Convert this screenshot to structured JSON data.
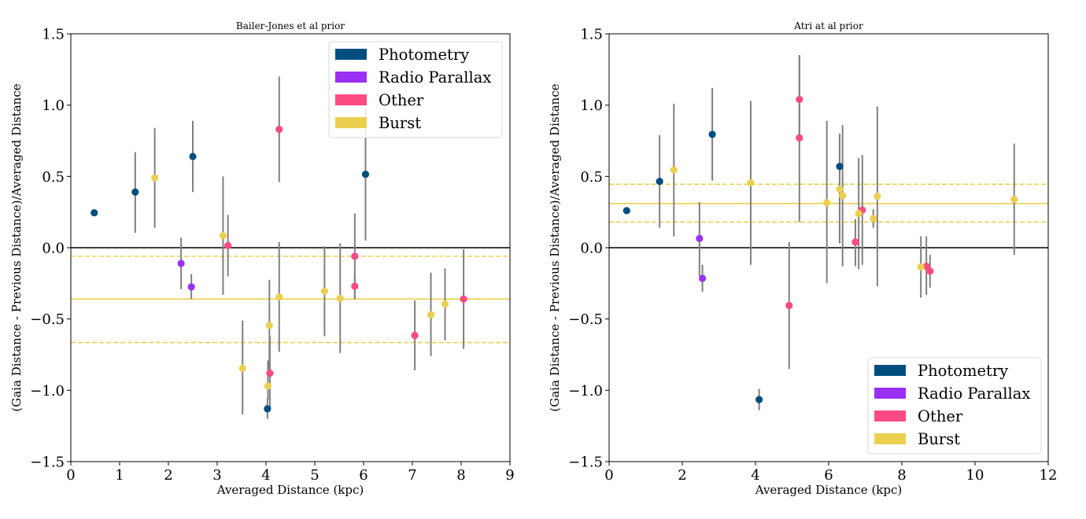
{
  "colors": {
    "photometry": "#004e7f",
    "radio": "#9b30f5",
    "other": "#fc4a83",
    "burst": "#ebd050",
    "errorbar": "#808080",
    "zero_line": "#000000"
  },
  "chart_data": [
    {
      "type": "scatter",
      "title": "Bailer-Jones et al prior",
      "xlabel": "Averaged Distance (kpc)",
      "ylabel": "(Gaia Distance - Previous Distance)/Averaged Distance",
      "xlim": [
        0,
        9
      ],
      "ylim": [
        -1.5,
        1.5
      ],
      "xticks": [
        "0",
        "1",
        "2",
        "3",
        "4",
        "5",
        "6",
        "7",
        "8",
        "9"
      ],
      "yticks": [
        "1.5",
        "1.0",
        "0.5",
        "0.0",
        "−0.5",
        "−1.0",
        "−1.5"
      ],
      "legend_position": "upper right",
      "legend": [
        {
          "label": "Photometry",
          "category": "photometry"
        },
        {
          "label": "Radio Parallax",
          "category": "radio"
        },
        {
          "label": "Other",
          "category": "other"
        },
        {
          "label": "Burst",
          "category": "burst"
        }
      ],
      "reference_lines": [
        {
          "y": 0.0,
          "category": "zero",
          "style": "solid"
        },
        {
          "y": -0.36,
          "category": "burst",
          "style": "solid"
        },
        {
          "y": -0.06,
          "category": "burst",
          "style": "dashed"
        },
        {
          "y": -0.665,
          "category": "burst",
          "style": "dashed"
        }
      ],
      "points": [
        {
          "x": 0.48,
          "y": 0.245,
          "lo": 0.245,
          "hi": 0.245,
          "category": "photometry"
        },
        {
          "x": 1.32,
          "y": 0.39,
          "lo": 0.105,
          "hi": 0.67,
          "category": "photometry"
        },
        {
          "x": 2.5,
          "y": 0.64,
          "lo": 0.39,
          "hi": 0.89,
          "category": "photometry"
        },
        {
          "x": 4.03,
          "y": -1.13,
          "lo": -1.2,
          "hi": -1.06,
          "category": "photometry"
        },
        {
          "x": 6.04,
          "y": 0.515,
          "lo": 0.05,
          "hi": 0.98,
          "category": "photometry"
        },
        {
          "x": 2.26,
          "y": -0.11,
          "lo": -0.29,
          "hi": 0.07,
          "category": "radio"
        },
        {
          "x": 2.47,
          "y": -0.275,
          "lo": -0.36,
          "hi": -0.185,
          "category": "radio"
        },
        {
          "x": 3.22,
          "y": 0.015,
          "lo": -0.2,
          "hi": 0.23,
          "category": "other"
        },
        {
          "x": 4.08,
          "y": -0.88,
          "lo": -1.14,
          "hi": -0.62,
          "category": "other"
        },
        {
          "x": 4.27,
          "y": 0.83,
          "lo": 0.46,
          "hi": 1.2,
          "category": "other"
        },
        {
          "x": 5.82,
          "y": -0.06,
          "lo": -0.36,
          "hi": 0.24,
          "category": "other"
        },
        {
          "x": 5.82,
          "y": -0.27,
          "lo": -0.36,
          "hi": -0.18,
          "category": "other"
        },
        {
          "x": 7.05,
          "y": -0.615,
          "lo": -0.86,
          "hi": -0.37,
          "category": "other"
        },
        {
          "x": 8.05,
          "y": -0.36,
          "lo": -0.71,
          "hi": -0.01,
          "category": "other"
        },
        {
          "x": 1.72,
          "y": 0.49,
          "lo": 0.14,
          "hi": 0.84,
          "category": "burst"
        },
        {
          "x": 3.12,
          "y": 0.085,
          "lo": -0.33,
          "hi": 0.5,
          "category": "burst"
        },
        {
          "x": 3.52,
          "y": -0.845,
          "lo": -1.17,
          "hi": -0.51,
          "category": "burst"
        },
        {
          "x": 4.04,
          "y": -0.97,
          "lo": -1.07,
          "hi": -0.79,
          "category": "burst"
        },
        {
          "x": 4.07,
          "y": -0.545,
          "lo": -0.86,
          "hi": -0.225,
          "category": "burst"
        },
        {
          "x": 4.27,
          "y": -0.345,
          "lo": -0.73,
          "hi": 0.04,
          "category": "burst"
        },
        {
          "x": 5.2,
          "y": -0.305,
          "lo": -0.62,
          "hi": 0.01,
          "category": "burst"
        },
        {
          "x": 5.52,
          "y": -0.355,
          "lo": -0.74,
          "hi": 0.03,
          "category": "burst"
        },
        {
          "x": 7.38,
          "y": -0.47,
          "lo": -0.76,
          "hi": -0.175,
          "category": "burst"
        },
        {
          "x": 7.67,
          "y": -0.395,
          "lo": -0.65,
          "hi": -0.145,
          "category": "burst"
        }
      ]
    },
    {
      "type": "scatter",
      "title": "Atri at al prior",
      "xlabel": "Averaged Distance (kpc)",
      "ylabel": "(Gaia Distance - Previous Distance)/Averaged Distance",
      "xlim": [
        0,
        12
      ],
      "ylim": [
        -1.5,
        1.5
      ],
      "xticks": [
        "0",
        "2",
        "4",
        "6",
        "8",
        "10",
        "12"
      ],
      "yticks": [
        "1.5",
        "1.0",
        "0.5",
        "0.0",
        "−0.5",
        "−1.0",
        "−1.5"
      ],
      "legend_position": "lower right",
      "legend": [
        {
          "label": "Photometry",
          "category": "photometry"
        },
        {
          "label": "Radio Parallax",
          "category": "radio"
        },
        {
          "label": "Other",
          "category": "other"
        },
        {
          "label": "Burst",
          "category": "burst"
        }
      ],
      "reference_lines": [
        {
          "y": 0.0,
          "category": "zero",
          "style": "solid"
        },
        {
          "y": 0.31,
          "category": "burst",
          "style": "solid"
        },
        {
          "y": 0.445,
          "category": "burst",
          "style": "dashed"
        },
        {
          "y": 0.18,
          "category": "burst",
          "style": "dashed"
        }
      ],
      "points": [
        {
          "x": 0.48,
          "y": 0.26,
          "lo": 0.26,
          "hi": 0.26,
          "category": "photometry"
        },
        {
          "x": 1.38,
          "y": 0.465,
          "lo": 0.14,
          "hi": 0.79,
          "category": "photometry"
        },
        {
          "x": 2.82,
          "y": 0.795,
          "lo": 0.47,
          "hi": 1.12,
          "category": "photometry"
        },
        {
          "x": 4.1,
          "y": -1.065,
          "lo": -1.14,
          "hi": -0.99,
          "category": "photometry"
        },
        {
          "x": 6.3,
          "y": 0.57,
          "lo": 0.3,
          "hi": 0.8,
          "category": "photometry"
        },
        {
          "x": 2.47,
          "y": 0.065,
          "lo": -0.2,
          "hi": 0.32,
          "category": "radio"
        },
        {
          "x": 2.55,
          "y": -0.215,
          "lo": -0.31,
          "hi": -0.12,
          "category": "radio"
        },
        {
          "x": 4.92,
          "y": -0.405,
          "lo": -0.85,
          "hi": 0.04,
          "category": "other"
        },
        {
          "x": 5.2,
          "y": 1.04,
          "lo": 0.74,
          "hi": 1.35,
          "category": "other"
        },
        {
          "x": 5.2,
          "y": 0.77,
          "lo": 0.18,
          "hi": 1.35,
          "category": "other"
        },
        {
          "x": 6.73,
          "y": 0.04,
          "lo": -0.13,
          "hi": 0.2,
          "category": "other"
        },
        {
          "x": 6.92,
          "y": 0.265,
          "lo": -0.12,
          "hi": 0.65,
          "category": "other"
        },
        {
          "x": 8.67,
          "y": -0.13,
          "lo": -0.33,
          "hi": 0.08,
          "category": "other"
        },
        {
          "x": 8.77,
          "y": -0.165,
          "lo": -0.28,
          "hi": -0.05,
          "category": "other"
        },
        {
          "x": 1.77,
          "y": 0.545,
          "lo": 0.08,
          "hi": 1.01,
          "category": "burst"
        },
        {
          "x": 3.87,
          "y": 0.455,
          "lo": -0.12,
          "hi": 1.03,
          "category": "burst"
        },
        {
          "x": 5.95,
          "y": 0.315,
          "lo": -0.25,
          "hi": 0.89,
          "category": "burst"
        },
        {
          "x": 6.3,
          "y": 0.41,
          "lo": 0.03,
          "hi": 0.79,
          "category": "burst"
        },
        {
          "x": 6.38,
          "y": 0.365,
          "lo": -0.13,
          "hi": 0.86,
          "category": "burst"
        },
        {
          "x": 6.82,
          "y": 0.24,
          "lo": -0.15,
          "hi": 0.63,
          "category": "burst"
        },
        {
          "x": 7.22,
          "y": 0.205,
          "lo": 0.14,
          "hi": 0.27,
          "category": "burst"
        },
        {
          "x": 7.33,
          "y": 0.36,
          "lo": -0.27,
          "hi": 0.99,
          "category": "burst"
        },
        {
          "x": 8.52,
          "y": -0.135,
          "lo": -0.35,
          "hi": 0.08,
          "category": "burst"
        },
        {
          "x": 11.07,
          "y": 0.34,
          "lo": -0.05,
          "hi": 0.73,
          "category": "burst"
        }
      ]
    }
  ]
}
